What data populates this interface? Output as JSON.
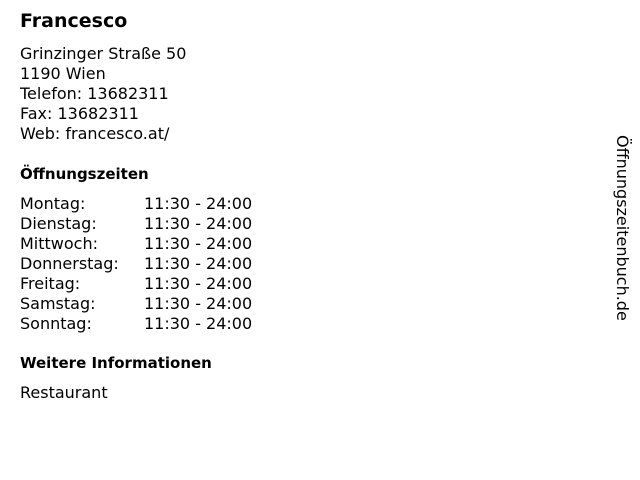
{
  "name": "Francesco",
  "address": [
    "Grinzinger Straße 50",
    "1190 Wien",
    "Telefon: 13682311",
    "Fax: 13682311",
    "Web: francesco.at/"
  ],
  "hours_heading": "Öffnungszeiten",
  "hours": [
    {
      "day": "Montag:",
      "time": "11:30 - 24:00"
    },
    {
      "day": "Dienstag:",
      "time": "11:30 - 24:00"
    },
    {
      "day": "Mittwoch:",
      "time": "11:30 - 24:00"
    },
    {
      "day": "Donnerstag:",
      "time": "11:30 - 24:00"
    },
    {
      "day": "Freitag:",
      "time": "11:30 - 24:00"
    },
    {
      "day": "Samstag:",
      "time": "11:30 - 24:00"
    },
    {
      "day": "Sonntag:",
      "time": "11:30 - 24:00"
    }
  ],
  "info_heading": "Weitere Informationen",
  "info": "Restaurant",
  "watermark": "Öffnungszeitenbuch.de"
}
